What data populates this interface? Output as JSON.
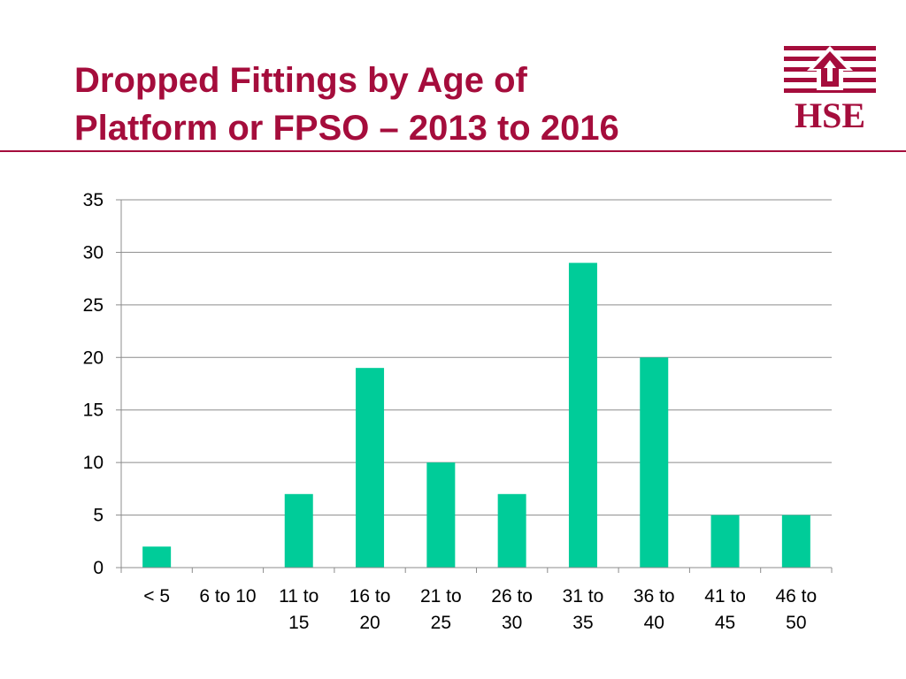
{
  "slide": {
    "title_line1": "Dropped Fittings by Age of",
    "title_line2": "Platform or FPSO – 2013 to 2016",
    "logo_text": "HSE",
    "title_color": "#a50d3c"
  },
  "chart_data": {
    "type": "bar",
    "categories": [
      [
        "< 5"
      ],
      [
        "6 to 10"
      ],
      [
        "11 to",
        "15"
      ],
      [
        "16 to",
        "20"
      ],
      [
        "21 to",
        "25"
      ],
      [
        "26 to",
        "30"
      ],
      [
        "31 to",
        "35"
      ],
      [
        "36 to",
        "40"
      ],
      [
        "41 to",
        "45"
      ],
      [
        "46 to",
        "50"
      ]
    ],
    "values": [
      2,
      0,
      7,
      19,
      10,
      7,
      29,
      20,
      5,
      5
    ],
    "ylim": [
      0,
      35
    ],
    "yticks": [
      0,
      5,
      10,
      15,
      20,
      25,
      30,
      35
    ],
    "grid": true,
    "legend": "none",
    "bar_color": "#00cc99",
    "title": "",
    "xlabel": "",
    "ylabel": ""
  }
}
